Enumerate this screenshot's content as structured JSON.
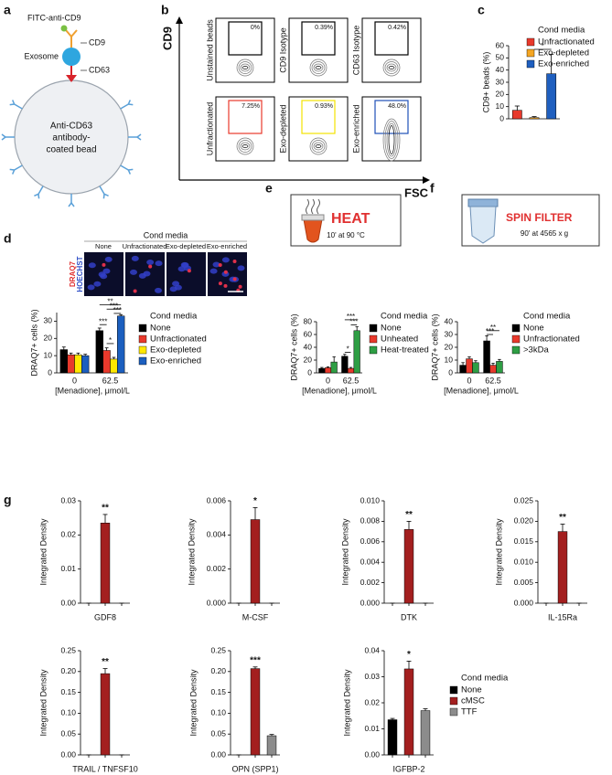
{
  "panels": [
    "a",
    "b",
    "c",
    "d",
    "e",
    "f",
    "g"
  ],
  "diagram_a": {
    "antibody": "FITC-anti-CD9",
    "cd9": "CD9",
    "exosome": "Exosome",
    "cd63": "CD63",
    "bead": [
      "Anti-CD63",
      "antibody-",
      "coated bead"
    ]
  },
  "flow_b": {
    "y_label": "CD9",
    "x_label": "FSC",
    "plots": [
      {
        "label": "Unstained beads",
        "gate": "0%",
        "color": "#000000"
      },
      {
        "label": "CD9 Isotype",
        "gate": "0.39%",
        "color": "#000000"
      },
      {
        "label": "CD63 Isotype",
        "gate": "0.42%",
        "color": "#000000"
      },
      {
        "label": "Unfractionated",
        "gate": "7.25%",
        "color": "#e8392c"
      },
      {
        "label": "Exo-depleted",
        "gate": "0.93%",
        "color": "#f2e200"
      },
      {
        "label": "Exo-enriched",
        "gate": "48.0%",
        "color": "#1f4fb8"
      }
    ]
  },
  "micrographs_d": {
    "title": "Cond media",
    "columns": [
      "None",
      "Unfractionated",
      "Exo-depleted",
      "Exo-enriched"
    ],
    "stains": [
      "DRAQ7",
      "HOECHST"
    ]
  },
  "treatment_e": {
    "title": "HEAT",
    "condition": "10' at 90 °C"
  },
  "treatment_f": {
    "title": "SPIN FILTER",
    "condition": "90' at 4565 x g"
  },
  "chart_data": [
    {
      "type": "bar",
      "y_label": "CD9+ beads (%)",
      "legend_title": "Cond media",
      "series": [
        {
          "name": "Unfractionated",
          "color": "#e8392c",
          "values": [
            7
          ],
          "errors": [
            3.5
          ]
        },
        {
          "name": "Exo-depleted",
          "color": "#f5a623",
          "values": [
            1
          ],
          "errors": [
            0.8
          ]
        },
        {
          "name": "Exo-enriched",
          "color": "#1f5fbf",
          "values": [
            37
          ],
          "errors": [
            16
          ]
        }
      ],
      "ylim": [
        0,
        60
      ],
      "yticks": [
        0,
        10,
        20,
        30,
        40,
        50,
        60
      ],
      "annotations": [
        "*"
      ]
    },
    {
      "type": "bar",
      "y_label": "DRAQ7+ cells (%)",
      "x_label": "[Menadione], μmol/L",
      "categories": [
        "0",
        "62.5"
      ],
      "legend_title": "Cond media",
      "series": [
        {
          "name": "None",
          "color": "#000000",
          "values": [
            13.5,
            24.5
          ],
          "errors": [
            1.5,
            1.5
          ]
        },
        {
          "name": "Unfractionated",
          "color": "#e8392c",
          "values": [
            10.5,
            13
          ],
          "errors": [
            1,
            1.5
          ]
        },
        {
          "name": "Exo-depleted",
          "color": "#ffe800",
          "values": [
            10.5,
            8
          ],
          "errors": [
            1,
            1
          ]
        },
        {
          "name": "Exo-enriched",
          "color": "#1c5fbf",
          "values": [
            10,
            33
          ],
          "errors": [
            0.8,
            0.8
          ]
        }
      ],
      "ylim": [
        0,
        35
      ],
      "yticks": [
        0,
        10,
        20,
        30
      ],
      "annotations": [
        "**",
        "***",
        "***",
        "***",
        "*"
      ]
    },
    {
      "type": "bar",
      "y_label": "DRAQ7+ cells (%)",
      "x_label": "[Menadione], μmol/L",
      "categories": [
        "0",
        "62.5"
      ],
      "legend_title": "Cond media",
      "series": [
        {
          "name": "None",
          "color": "#000000",
          "values": [
            7,
            26
          ],
          "errors": [
            1.5,
            3
          ]
        },
        {
          "name": "Unheated",
          "color": "#e8392c",
          "values": [
            8,
            7
          ],
          "errors": [
            1.5,
            1.5
          ]
        },
        {
          "name": "Heat-treated",
          "color": "#2e9e44",
          "values": [
            17,
            66
          ],
          "errors": [
            8,
            6
          ]
        }
      ],
      "ylim": [
        0,
        80
      ],
      "yticks": [
        0,
        20,
        40,
        60,
        80
      ],
      "annotations": [
        "***",
        "***",
        "*"
      ]
    },
    {
      "type": "bar",
      "y_label": "DRAQ7+ cells (%)",
      "x_label": "[Menadione], μmol/L",
      "categories": [
        "0",
        "62.5"
      ],
      "legend_title": "Cond media",
      "series": [
        {
          "name": "None",
          "color": "#000000",
          "values": [
            6,
            25
          ],
          "errors": [
            2,
            4
          ]
        },
        {
          "name": "Unfractionated",
          "color": "#e8392c",
          "values": [
            11,
            6
          ],
          "errors": [
            1.5,
            1.5
          ]
        },
        {
          "name": ">3kDa",
          "color": "#2e9e44",
          "values": [
            8,
            9
          ],
          "errors": [
            1.5,
            1.5
          ]
        }
      ],
      "ylim": [
        0,
        40
      ],
      "yticks": [
        0,
        10,
        20,
        30,
        40
      ],
      "annotations": [
        "**",
        "***"
      ]
    },
    {
      "type": "bar",
      "y_label": "Integrated Density",
      "x_label": "GDF8",
      "series": [
        {
          "color": "#000000",
          "values": [
            0
          ],
          "errors": [
            0
          ]
        },
        {
          "color": "#a31f1f",
          "values": [
            0.0235
          ],
          "errors": [
            0.0025
          ]
        },
        {
          "color": "#8c8c8c",
          "values": [
            0
          ],
          "errors": [
            0
          ]
        }
      ],
      "ylim": [
        0,
        0.03
      ],
      "yticks": [
        {
          "value": 0,
          "label": "0.00"
        },
        0.01,
        0.02,
        0.03
      ],
      "annotations": [
        "**"
      ]
    },
    {
      "type": "bar",
      "y_label": "Integrated Density",
      "x_label": "M-CSF",
      "series": [
        {
          "color": "#000000",
          "values": [
            0
          ],
          "errors": [
            0
          ]
        },
        {
          "color": "#a31f1f",
          "values": [
            0.0049
          ],
          "errors": [
            0.0007
          ]
        },
        {
          "color": "#8c8c8c",
          "values": [
            0
          ],
          "errors": [
            0
          ]
        }
      ],
      "ylim": [
        0,
        0.006
      ],
      "yticks": [
        {
          "value": 0,
          "label": "0.000"
        },
        0.002,
        0.004,
        0.006
      ],
      "annotations": [
        "*"
      ]
    },
    {
      "type": "bar",
      "y_label": "Integrated Density",
      "x_label": "DTK",
      "series": [
        {
          "color": "#000000",
          "values": [
            0
          ],
          "errors": [
            0
          ]
        },
        {
          "color": "#a31f1f",
          "values": [
            0.0072
          ],
          "errors": [
            0.0008
          ]
        },
        {
          "color": "#8c8c8c",
          "values": [
            0
          ],
          "errors": [
            0
          ]
        }
      ],
      "ylim": [
        0,
        0.01
      ],
      "yticks": [
        {
          "value": 0,
          "label": "0.000"
        },
        0.002,
        0.004,
        0.006,
        0.008,
        {
          "value": 0.01,
          "label": "0.010"
        }
      ],
      "annotations": [
        "**"
      ]
    },
    {
      "type": "bar",
      "y_label": "Integrated Density",
      "x_label": "IL-15Ra",
      "series": [
        {
          "color": "#000000",
          "values": [
            0
          ],
          "errors": [
            0
          ]
        },
        {
          "color": "#a31f1f",
          "values": [
            0.0175
          ],
          "errors": [
            0.0018
          ]
        },
        {
          "color": "#8c8c8c",
          "values": [
            0
          ],
          "errors": [
            0
          ]
        }
      ],
      "ylim": [
        0,
        0.025
      ],
      "yticks": [
        {
          "value": 0,
          "label": "0.000"
        },
        0.005,
        {
          "value": 0.01,
          "label": "0.010"
        },
        0.015,
        {
          "value": 0.02,
          "label": "0.020"
        },
        0.025
      ],
      "annotations": [
        "**"
      ]
    },
    {
      "type": "bar",
      "y_label": "Integrated Density",
      "x_label": "TRAIL / TNFSF10",
      "series": [
        {
          "color": "#000000",
          "values": [
            0
          ],
          "errors": [
            0
          ]
        },
        {
          "color": "#a31f1f",
          "values": [
            0.195
          ],
          "errors": [
            0.012
          ]
        },
        {
          "color": "#8c8c8c",
          "values": [
            0
          ],
          "errors": [
            0
          ]
        }
      ],
      "ylim": [
        0,
        0.25
      ],
      "yticks": [
        {
          "value": 0,
          "label": "0.00"
        },
        0.05,
        {
          "value": 0.1,
          "label": "0.10"
        },
        0.15,
        {
          "value": 0.2,
          "label": "0.20"
        },
        0.25
      ],
      "annotations": [
        "**"
      ]
    },
    {
      "type": "bar",
      "y_label": "Integrated Density",
      "x_label": "OPN (SPP1)",
      "series": [
        {
          "color": "#000000",
          "values": [
            0
          ],
          "errors": [
            0
          ]
        },
        {
          "color": "#a31f1f",
          "values": [
            0.207
          ],
          "errors": [
            0.004
          ]
        },
        {
          "color": "#8c8c8c",
          "values": [
            0.046
          ],
          "errors": [
            0.003
          ]
        }
      ],
      "ylim": [
        0,
        0.25
      ],
      "yticks": [
        {
          "value": 0,
          "label": "0.00"
        },
        0.05,
        {
          "value": 0.1,
          "label": "0.10"
        },
        0.15,
        {
          "value": 0.2,
          "label": "0.20"
        },
        0.25
      ],
      "annotations": [
        "***"
      ]
    },
    {
      "type": "bar",
      "y_label": "Integrated Density",
      "x_label": "IGFBP-2",
      "legend_title": "Cond media",
      "series": [
        {
          "name": "None",
          "color": "#000000",
          "values": [
            0.0135
          ],
          "errors": [
            0.0005
          ]
        },
        {
          "name": "cMSC",
          "color": "#a31f1f",
          "values": [
            0.033
          ],
          "errors": [
            0.003
          ]
        },
        {
          "name": "TTF",
          "color": "#8c8c8c",
          "values": [
            0.017
          ],
          "errors": [
            0.0007
          ]
        }
      ],
      "ylim": [
        0,
        0.04
      ],
      "yticks": [
        {
          "value": 0,
          "label": "0.00"
        },
        0.01,
        0.02,
        0.03,
        0.04
      ],
      "annotations": [
        "*"
      ]
    }
  ]
}
